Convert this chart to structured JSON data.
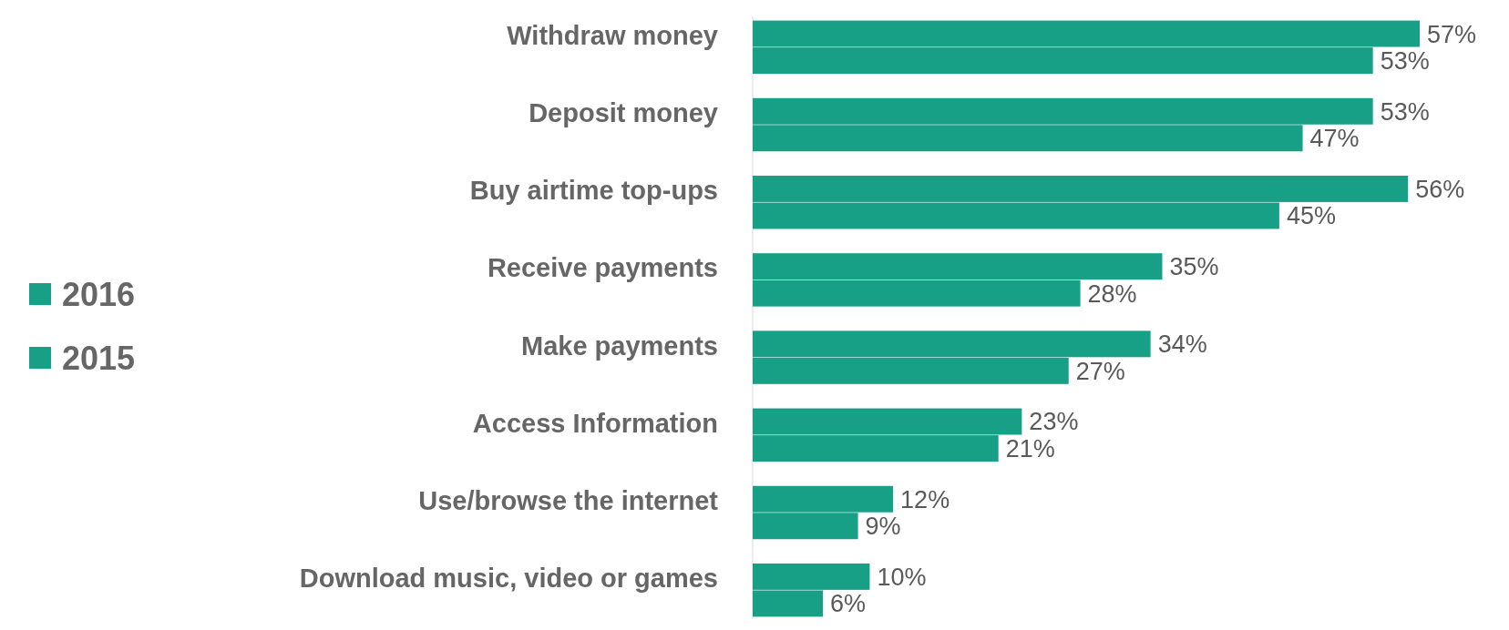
{
  "chart_data": {
    "type": "bar",
    "orientation": "horizontal",
    "legend": "left",
    "categories": [
      "Withdraw money",
      "Deposit money",
      "Buy airtime top-ups",
      "Receive payments",
      "Make payments",
      "Access Information",
      "Use/browse the internet",
      "Download music, video or games"
    ],
    "series": [
      {
        "name": "2016",
        "color": "#17a085",
        "values": [
          57,
          53,
          56,
          35,
          34,
          23,
          12,
          10
        ],
        "value_labels": [
          "57%",
          "53%",
          "56%",
          "35%",
          "34%",
          "23%",
          "12%",
          "10%"
        ]
      },
      {
        "name": "2015",
        "color": "#17a085",
        "values": [
          53,
          47,
          45,
          28,
          27,
          21,
          9,
          6
        ],
        "value_labels": [
          "53%",
          "47%",
          "45%",
          "28%",
          "27%",
          "21%",
          "9%",
          "6%"
        ]
      }
    ]
  }
}
